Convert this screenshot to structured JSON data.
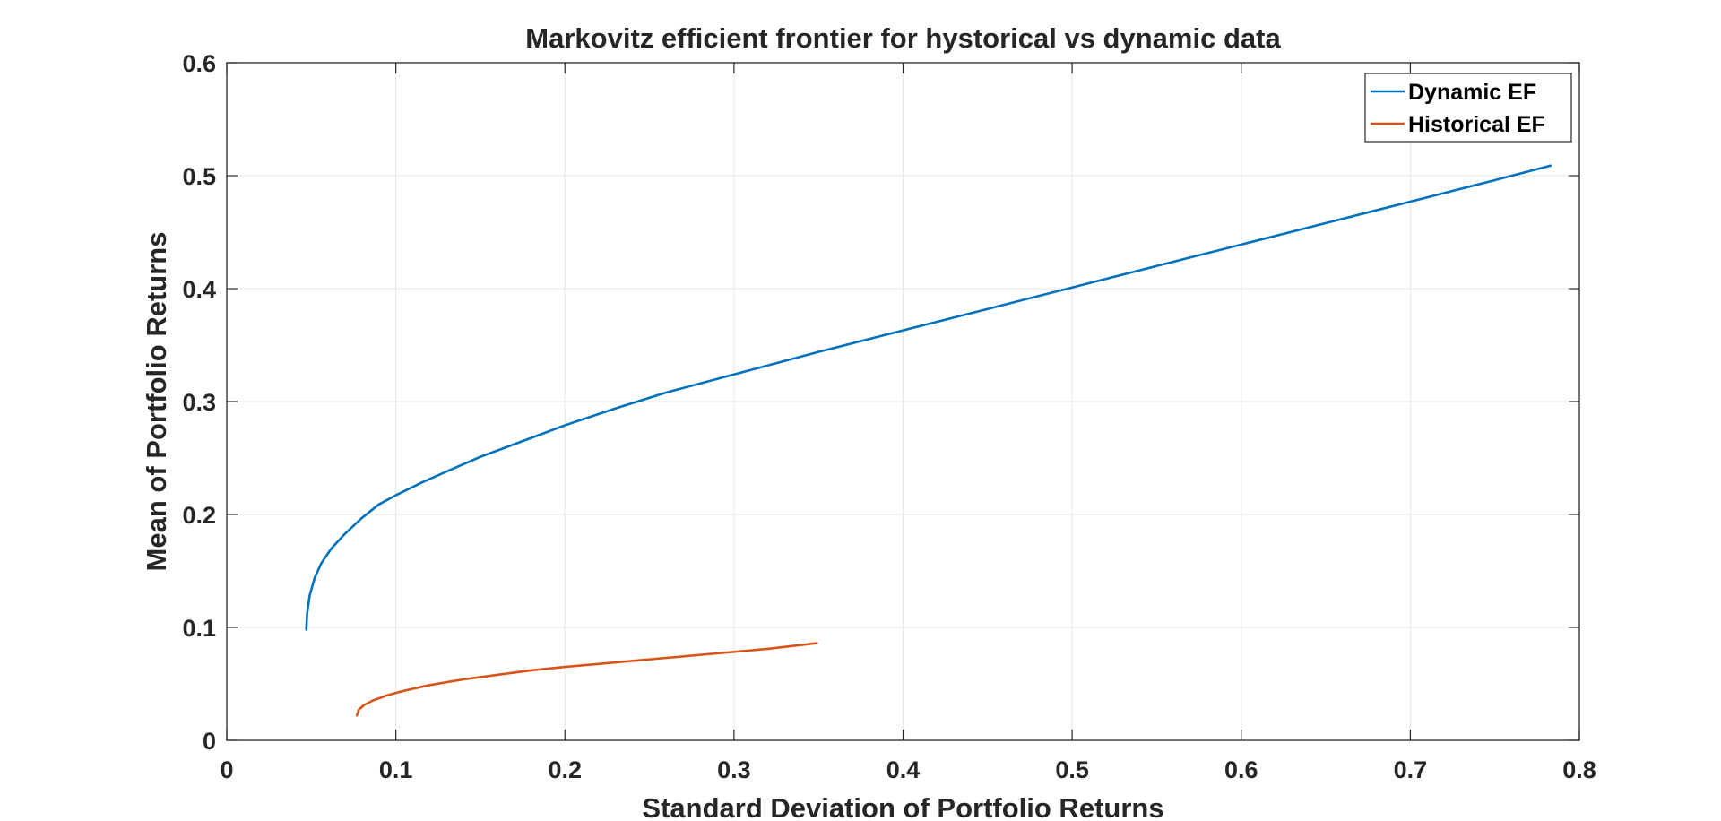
{
  "colors": {
    "dynamic": "#0072BD",
    "historical": "#D95319",
    "grid": "#e6e6e6",
    "axis": "#262626"
  },
  "chart_data": {
    "type": "line",
    "title": "Markovitz efficient frontier for hystorical vs dynamic data",
    "xlabel": "Standard Deviation of Portfolio Returns",
    "ylabel": "Mean of Portfolio Returns",
    "xlim": [
      0,
      0.8
    ],
    "ylim": [
      0,
      0.6
    ],
    "xticks": [
      "0",
      "0.1",
      "0.2",
      "0.3",
      "0.4",
      "0.5",
      "0.6",
      "0.7",
      "0.8"
    ],
    "yticks": [
      "0",
      "0.1",
      "0.2",
      "0.3",
      "0.4",
      "0.5",
      "0.6"
    ],
    "grid": true,
    "legend_position": "top-right",
    "series": [
      {
        "name": "Dynamic EF",
        "color": "#0072BD",
        "x": [
          0.047,
          0.0475,
          0.049,
          0.052,
          0.056,
          0.062,
          0.07,
          0.08,
          0.09,
          0.1,
          0.115,
          0.13,
          0.15,
          0.175,
          0.2,
          0.23,
          0.26,
          0.3,
          0.35,
          0.4,
          0.45,
          0.5,
          0.55,
          0.6,
          0.65,
          0.7,
          0.75,
          0.783
        ],
        "y": [
          0.098,
          0.112,
          0.128,
          0.144,
          0.157,
          0.17,
          0.183,
          0.197,
          0.209,
          0.217,
          0.228,
          0.238,
          0.251,
          0.265,
          0.279,
          0.294,
          0.308,
          0.324,
          0.344,
          0.363,
          0.382,
          0.401,
          0.42,
          0.439,
          0.458,
          0.477,
          0.496,
          0.509
        ]
      },
      {
        "name": "Historical EF",
        "color": "#D95319",
        "x": [
          0.077,
          0.078,
          0.081,
          0.086,
          0.095,
          0.105,
          0.12,
          0.14,
          0.16,
          0.18,
          0.2,
          0.23,
          0.26,
          0.29,
          0.32,
          0.349
        ],
        "y": [
          0.022,
          0.027,
          0.031,
          0.035,
          0.04,
          0.044,
          0.049,
          0.054,
          0.058,
          0.062,
          0.065,
          0.069,
          0.073,
          0.077,
          0.081,
          0.086
        ]
      }
    ]
  }
}
